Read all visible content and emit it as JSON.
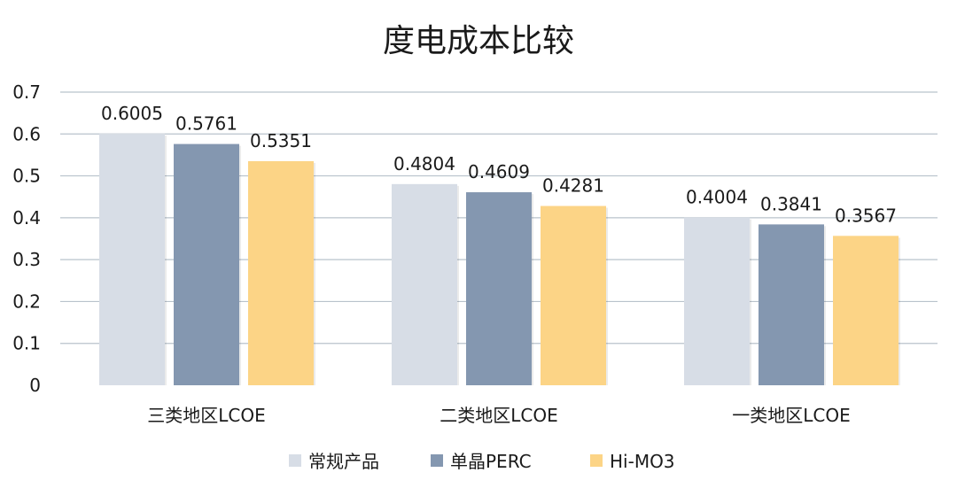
{
  "chart_data": {
    "type": "bar",
    "title": "度电成本比较",
    "categories": [
      "三类地区LCOE",
      "二类地区LCOE",
      "一类地区LCOE"
    ],
    "series": [
      {
        "name": "常规产品",
        "color": "#d7dde6",
        "values": [
          0.6005,
          0.4804,
          0.4004
        ]
      },
      {
        "name": "单晶PERC",
        "color": "#8497b0",
        "values": [
          0.5761,
          0.4609,
          0.3841
        ]
      },
      {
        "name": "Hi-MO3",
        "color": "#fcd486",
        "values": [
          0.5351,
          0.4281,
          0.3567
        ]
      }
    ],
    "data_labels": [
      [
        "0.6005",
        "0.4804",
        "0.4004"
      ],
      [
        "0.5761",
        "0.4609",
        "0.3841"
      ],
      [
        "0.5351",
        "0.4281",
        "0.3567"
      ]
    ],
    "yticks": [
      "0",
      "0.1",
      "0.2",
      "0.3",
      "0.4",
      "0.5",
      "0.6",
      "0.7"
    ],
    "ylim": [
      0,
      0.7
    ],
    "grid": true,
    "legend_position": "bottom"
  }
}
